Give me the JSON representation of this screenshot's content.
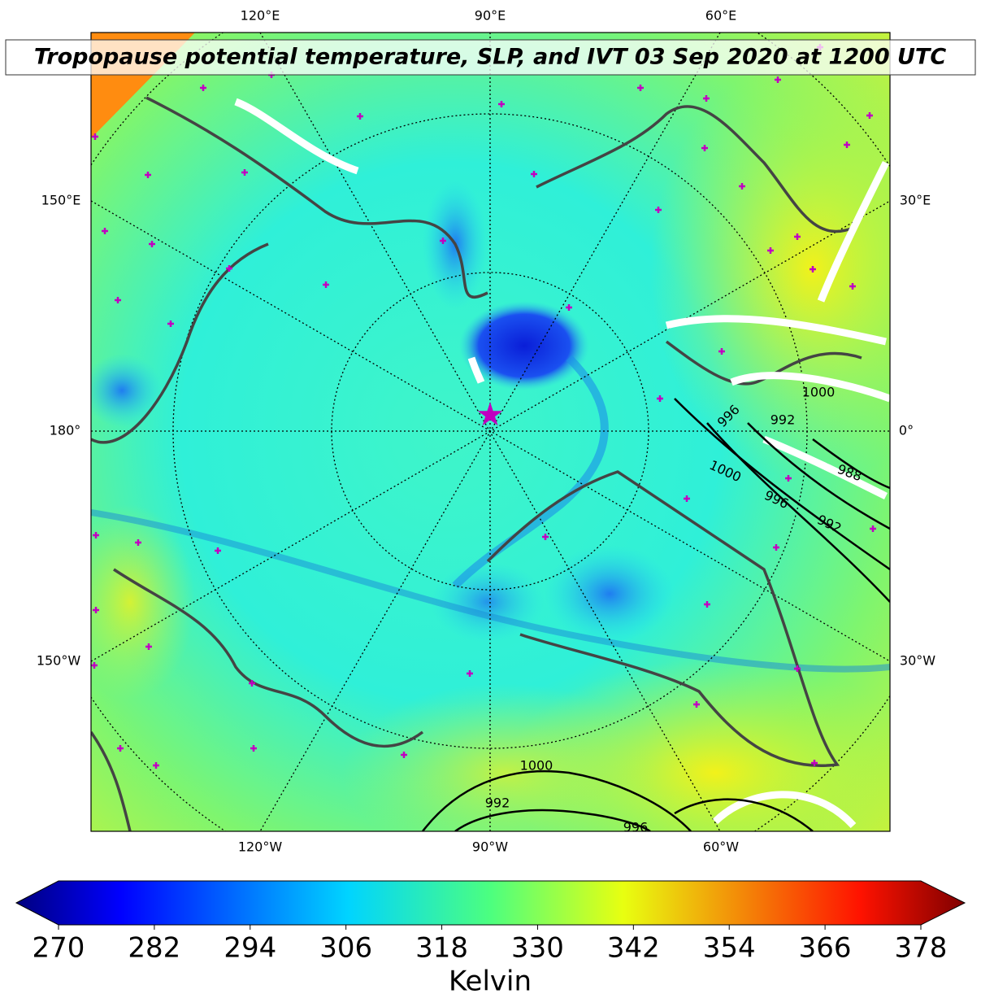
{
  "title": "Tropopause potential temperature, SLP, and IVT 03 Sep 2020 at 1200 UTC",
  "map": {
    "lon_labels_top": [
      "120°E",
      "90°E",
      "60°E"
    ],
    "lon_labels_bottom": [
      "120°W",
      "90°W",
      "60°W"
    ],
    "lat_labels_left": [
      "150°E",
      "180°",
      "150°W"
    ],
    "lat_labels_right": [
      "30°E",
      "0°",
      "30°W"
    ],
    "slp_labels": [
      1000,
      996,
      992,
      1000,
      988,
      996,
      992,
      1000,
      992,
      996
    ]
  },
  "colorbar": {
    "label": "Kelvin",
    "lim": [
      270,
      378
    ],
    "ticks": [
      270,
      282,
      294,
      306,
      318,
      330,
      342,
      354,
      366,
      378
    ]
  }
}
